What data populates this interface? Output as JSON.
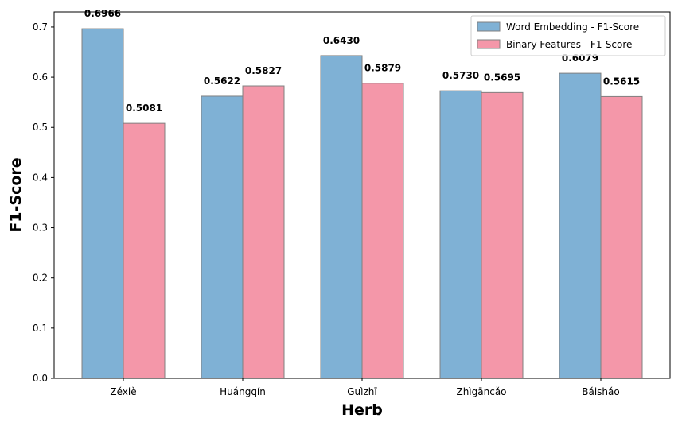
{
  "chart_data": {
    "type": "bar",
    "title": "",
    "xlabel": "Herb",
    "ylabel": "F1-Score",
    "categories": [
      "Zéxiè",
      "Huángqín",
      "Guìzhī",
      "Zhìgāncǎo",
      "Báisháo"
    ],
    "series": [
      {
        "name": "Word Embedding - F1-Score",
        "color": "#7fb1d5",
        "values": [
          0.6966,
          0.5622,
          0.643,
          0.573,
          0.6079
        ],
        "labels": [
          "0.6966",
          "0.5622",
          "0.6430",
          "0.5730",
          "0.6079"
        ]
      },
      {
        "name": "Binary Features - F1-Score",
        "color": "#f497a9",
        "values": [
          0.5081,
          0.5827,
          0.5879,
          0.5695,
          0.5615
        ],
        "labels": [
          "0.5081",
          "0.5827",
          "0.5879",
          "0.5695",
          "0.5615"
        ]
      }
    ],
    "ylim": [
      0,
      0.73
    ],
    "yticks": [
      0.0,
      0.1,
      0.2,
      0.3,
      0.4,
      0.5,
      0.6,
      0.7
    ],
    "ytick_labels": [
      "0.0",
      "0.1",
      "0.2",
      "0.3",
      "0.4",
      "0.5",
      "0.6",
      "0.7"
    ],
    "grid": false,
    "legend_position": "top-right"
  }
}
